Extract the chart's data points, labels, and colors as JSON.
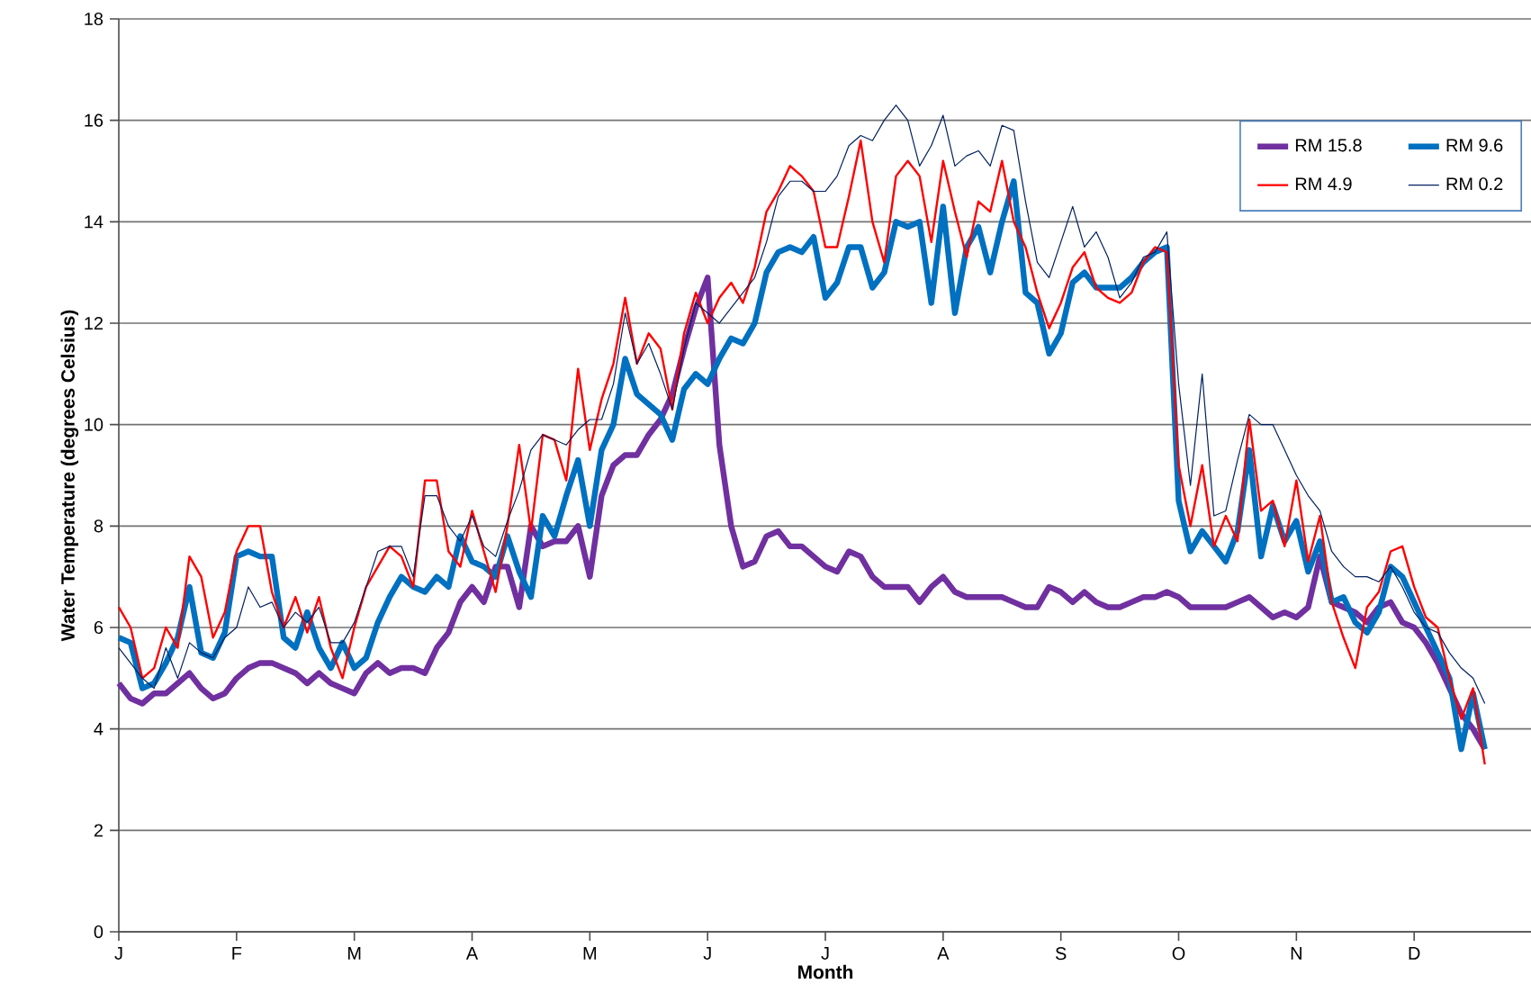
{
  "chart_data": {
    "type": "line",
    "xlabel": "Month",
    "ylabel": "Water Temperature (degrees Celsius)",
    "ylim": [
      0,
      18
    ],
    "categories": [
      "J",
      null,
      null,
      null,
      null,
      null,
      null,
      null,
      null,
      null,
      "F",
      null,
      null,
      null,
      null,
      null,
      null,
      null,
      null,
      null,
      "M",
      null,
      null,
      null,
      null,
      null,
      null,
      null,
      null,
      null,
      "A",
      null,
      null,
      null,
      null,
      null,
      null,
      null,
      null,
      null,
      "M",
      null,
      null,
      null,
      null,
      null,
      null,
      null,
      null,
      null,
      "J",
      null,
      null,
      null,
      null,
      null,
      null,
      null,
      null,
      null,
      "J",
      null,
      null,
      null,
      null,
      null,
      null,
      null,
      null,
      null,
      "A",
      null,
      null,
      null,
      null,
      null,
      null,
      null,
      null,
      null,
      "S",
      null,
      null,
      null,
      null,
      null,
      null,
      null,
      null,
      null,
      "O",
      null,
      null,
      null,
      null,
      null,
      null,
      null,
      null,
      null,
      "N",
      null,
      null,
      null,
      null,
      null,
      null,
      null,
      null,
      null,
      "D",
      null,
      null,
      null,
      null,
      null,
      null
    ],
    "yticks": [
      0,
      2,
      4,
      6,
      8,
      10,
      12,
      14,
      16,
      18
    ],
    "grid": "y",
    "legend": "top right",
    "marker": "none",
    "line_style": "solid",
    "series": [
      {
        "name": "RM 15.8",
        "color": "#7030a0",
        "values": [
          4.9,
          4.6,
          4.5,
          4.7,
          4.7,
          4.9,
          5.1,
          4.8,
          4.6,
          4.7,
          5.0,
          5.2,
          5.3,
          5.3,
          5.2,
          5.1,
          4.9,
          5.1,
          4.9,
          4.8,
          4.7,
          5.1,
          5.3,
          5.1,
          5.2,
          5.2,
          5.1,
          5.6,
          5.9,
          6.5,
          6.8,
          6.5,
          7.2,
          7.2,
          6.4,
          8.0,
          7.6,
          7.7,
          7.7,
          8.0,
          7.0,
          8.6,
          9.2,
          9.4,
          9.4,
          9.8,
          10.1,
          10.6,
          11.5,
          12.3,
          12.9,
          9.6,
          8.0,
          7.2,
          7.3,
          7.8,
          7.9,
          7.6,
          7.6,
          7.4,
          7.2,
          7.1,
          7.5,
          7.4,
          7.0,
          6.8,
          6.8,
          6.8,
          6.5,
          6.8,
          7.0,
          6.7,
          6.6,
          6.6,
          6.6,
          6.6,
          6.5,
          6.4,
          6.4,
          6.8,
          6.7,
          6.5,
          6.7,
          6.5,
          6.4,
          6.4,
          6.5,
          6.6,
          6.6,
          6.7,
          6.6,
          6.4,
          6.4,
          6.4,
          6.4,
          6.5,
          6.6,
          6.4,
          6.2,
          6.3,
          6.2,
          6.4,
          7.4,
          6.5,
          6.4,
          6.3,
          6.1,
          6.4,
          6.5,
          6.1,
          6.0,
          5.7,
          5.3,
          4.8,
          4.3,
          4.0,
          3.6
        ]
      },
      {
        "name": "RM 9.6",
        "color": "#0070c0",
        "values": [
          5.8,
          5.7,
          4.8,
          4.9,
          5.3,
          5.8,
          6.8,
          5.5,
          5.4,
          5.9,
          7.4,
          7.5,
          7.4,
          7.4,
          5.8,
          5.6,
          6.3,
          5.6,
          5.2,
          5.7,
          5.2,
          5.4,
          6.1,
          6.6,
          7.0,
          6.8,
          6.7,
          7.0,
          6.8,
          7.8,
          7.3,
          7.2,
          7.0,
          7.8,
          7.1,
          6.6,
          8.2,
          7.8,
          8.6,
          9.3,
          8.0,
          9.5,
          10.0,
          11.3,
          10.6,
          10.4,
          10.2,
          9.7,
          10.7,
          11.0,
          10.8,
          11.3,
          11.7,
          11.6,
          12.0,
          13.0,
          13.4,
          13.5,
          13.4,
          13.7,
          12.5,
          12.8,
          13.5,
          13.5,
          12.7,
          13.0,
          14.0,
          13.9,
          14.0,
          12.4,
          14.3,
          12.2,
          13.5,
          13.9,
          13.0,
          14.0,
          14.8,
          12.6,
          12.4,
          11.4,
          11.8,
          12.8,
          13.0,
          12.7,
          12.7,
          12.7,
          12.9,
          13.2,
          13.4,
          13.5,
          8.5,
          7.5,
          7.9,
          7.6,
          7.3,
          7.9,
          9.5,
          7.4,
          8.4,
          7.7,
          8.1,
          7.1,
          7.7,
          6.5,
          6.6,
          6.1,
          5.9,
          6.3,
          7.2,
          7.0,
          6.5,
          6.0,
          5.5,
          5.0,
          3.6,
          4.7,
          3.6
        ]
      },
      {
        "name": "RM 4.9",
        "color": "#ff0000",
        "values": [
          6.4,
          6.0,
          5.0,
          5.2,
          6.0,
          5.6,
          7.4,
          7.0,
          5.8,
          6.3,
          7.5,
          8.0,
          8.0,
          6.7,
          6.0,
          6.6,
          5.9,
          6.6,
          5.6,
          5.0,
          6.0,
          6.8,
          7.2,
          7.6,
          7.4,
          6.8,
          8.9,
          8.9,
          7.5,
          7.2,
          8.3,
          7.5,
          6.7,
          8.0,
          9.6,
          7.9,
          9.8,
          9.7,
          8.9,
          11.1,
          9.5,
          10.5,
          11.2,
          12.5,
          11.2,
          11.8,
          11.5,
          10.3,
          11.8,
          12.6,
          12.0,
          12.5,
          12.8,
          12.4,
          13.1,
          14.2,
          14.6,
          15.1,
          14.9,
          14.6,
          13.5,
          13.5,
          14.5,
          15.6,
          14.0,
          13.2,
          14.9,
          15.2,
          14.9,
          13.6,
          15.2,
          14.2,
          13.3,
          14.4,
          14.2,
          15.2,
          14.0,
          13.5,
          12.6,
          11.9,
          12.4,
          13.1,
          13.4,
          12.7,
          12.5,
          12.4,
          12.6,
          13.2,
          13.5,
          13.4,
          9.2,
          8.0,
          9.2,
          7.6,
          8.2,
          7.7,
          10.1,
          8.3,
          8.5,
          7.6,
          8.9,
          7.3,
          8.2,
          6.5,
          5.8,
          5.2,
          6.4,
          6.7,
          7.5,
          7.6,
          6.8,
          6.2,
          6.0,
          5.0,
          4.2,
          4.8,
          3.3
        ]
      },
      {
        "name": "RM 0.2",
        "color": "#002060",
        "values": [
          5.6,
          5.3,
          5.0,
          4.8,
          5.6,
          5.0,
          5.7,
          5.5,
          5.4,
          5.8,
          6.0,
          6.8,
          6.4,
          6.5,
          6.0,
          6.3,
          6.1,
          6.4,
          5.7,
          5.7,
          6.1,
          6.8,
          7.5,
          7.6,
          7.6,
          7.0,
          8.6,
          8.6,
          8.0,
          7.7,
          8.2,
          7.6,
          7.4,
          8.1,
          8.7,
          9.5,
          9.8,
          9.7,
          9.6,
          9.9,
          10.1,
          10.1,
          10.8,
          12.2,
          11.2,
          11.6,
          11.0,
          10.3,
          11.5,
          12.4,
          12.2,
          12.0,
          12.3,
          12.6,
          12.9,
          13.6,
          14.5,
          14.8,
          14.8,
          14.6,
          14.6,
          14.9,
          15.5,
          15.7,
          15.6,
          16.0,
          16.3,
          16.0,
          15.1,
          15.5,
          16.1,
          15.1,
          15.3,
          15.4,
          15.1,
          15.9,
          15.8,
          14.4,
          13.2,
          12.9,
          13.6,
          14.3,
          13.5,
          13.8,
          13.3,
          12.5,
          12.8,
          13.3,
          13.4,
          13.8,
          10.8,
          8.8,
          11.0,
          8.2,
          8.3,
          9.3,
          10.2,
          10.0,
          10.0,
          9.5,
          9.0,
          8.6,
          8.3,
          7.5,
          7.2,
          7.0,
          7.0,
          6.9,
          7.2,
          6.8,
          6.3,
          6.0,
          5.9,
          5.5,
          5.2,
          5.0,
          4.5
        ]
      }
    ]
  }
}
